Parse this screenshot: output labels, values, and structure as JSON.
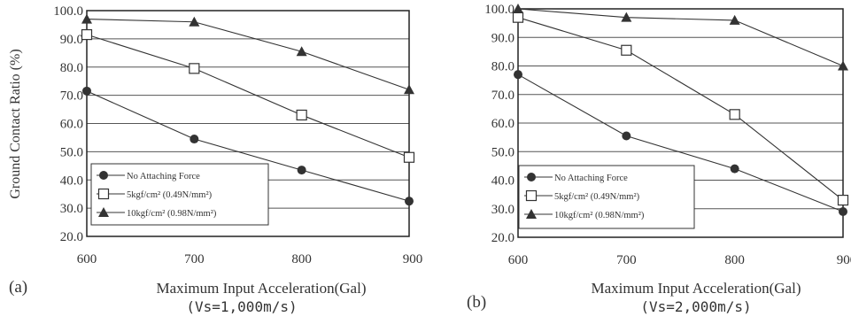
{
  "colors": {
    "ink": "#333333",
    "background": "#ffffff",
    "grid": "#555555"
  },
  "chart_data": [
    {
      "type": "line",
      "panel_label": "(a)",
      "subcaption": "(Vs=1,000m/s)",
      "title": "",
      "xlabel": "Maximum Input Acceleration(Gal)",
      "ylabel": "Ground Contact Ratio (%)",
      "x": [
        600,
        700,
        800,
        900
      ],
      "xticks": [
        "600",
        "700",
        "800",
        "900"
      ],
      "yticks": [
        "100.0",
        "90.0",
        "80.0",
        "70.0",
        "60.0",
        "50.0",
        "40.0",
        "30.0",
        "20.0"
      ],
      "xlim": [
        600,
        900
      ],
      "ylim": [
        20,
        100
      ],
      "grid": true,
      "legend_position": "bottom-left",
      "series": [
        {
          "name": "No Attaching Force",
          "marker": "filled-circle",
          "values": [
            71.5,
            54.5,
            43.5,
            32.5
          ]
        },
        {
          "name": "5kgf/cm² (0.49N/mm²)",
          "marker": "open-square",
          "values": [
            91.5,
            79.5,
            63,
            48
          ]
        },
        {
          "name": "10kgf/cm² (0.98N/mm²)",
          "marker": "filled-triangle",
          "values": [
            97,
            96,
            85.5,
            72
          ]
        }
      ]
    },
    {
      "type": "line",
      "panel_label": "(b)",
      "subcaption": "(Vs=2,000m/s)",
      "title": "",
      "xlabel": "Maximum Input Acceleration(Gal)",
      "ylabel": "",
      "x": [
        600,
        700,
        800,
        900
      ],
      "xticks": [
        "600",
        "700",
        "800",
        "900"
      ],
      "yticks": [
        "100.0",
        "90.0",
        "80.0",
        "70.0",
        "60.0",
        "50.0",
        "40.0",
        "30.0",
        "20.0"
      ],
      "xlim": [
        600,
        900
      ],
      "ylim": [
        20,
        100
      ],
      "grid": true,
      "legend_position": "bottom-left",
      "series": [
        {
          "name": "No Attaching Force",
          "marker": "filled-circle",
          "values": [
            77,
            55.5,
            44,
            29
          ]
        },
        {
          "name": "5kgf/cm² (0.49N/mm²)",
          "marker": "open-square",
          "values": [
            97,
            85.5,
            63,
            33
          ]
        },
        {
          "name": "10kgf/cm² (0.98N/mm²)",
          "marker": "filled-triangle",
          "values": [
            100,
            97,
            96,
            80
          ]
        }
      ]
    }
  ]
}
